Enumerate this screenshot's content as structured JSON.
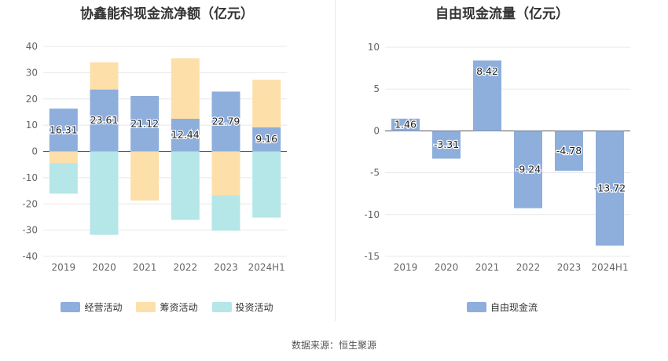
{
  "source_text": "数据来源：恒生聚源",
  "colors": {
    "operating": "#8eaedc",
    "financing": "#fddfa9",
    "investing": "#88d7d9",
    "fcf": "#8eaedc",
    "grid": "#e8e8e8",
    "axis": "#555555"
  },
  "chart_data": [
    {
      "type": "bar",
      "stacked": true,
      "title": "协鑫能科现金流净额（亿元）",
      "categories": [
        "2019",
        "2020",
        "2021",
        "2022",
        "2023",
        "2024H1"
      ],
      "ylim": [
        -40,
        40
      ],
      "yticks": [
        "40",
        "30",
        "20",
        "10",
        "0",
        "-10",
        "-20",
        "-30",
        "-40"
      ],
      "grid": true,
      "legend_position": "bottom",
      "series": [
        {
          "name": "经营活动",
          "color": "#8eaedc",
          "values": [
            16.31,
            23.61,
            21.12,
            12.44,
            22.79,
            9.16
          ],
          "labels": [
            "16.31",
            "23.61",
            "21.12",
            "12.44",
            "22.79",
            "9.16"
          ]
        },
        {
          "name": "筹资活动",
          "color": "#fddfa9",
          "values": [
            -4.5,
            10.3,
            -18.7,
            23.0,
            -16.7,
            18.1
          ]
        },
        {
          "name": "投资活动",
          "color": "#b5e6e8",
          "values": [
            -11.6,
            -31.8,
            0,
            -26.1,
            -13.5,
            -25.2
          ]
        }
      ]
    },
    {
      "type": "bar",
      "title": "自由现金流量（亿元）",
      "categories": [
        "2019",
        "2020",
        "2021",
        "2022",
        "2023",
        "2024H1"
      ],
      "ylim": [
        -15,
        10
      ],
      "yticks": [
        "10",
        "5",
        "0",
        "-5",
        "-10",
        "-15"
      ],
      "grid": true,
      "legend_position": "bottom",
      "series": [
        {
          "name": "自由现金流",
          "color": "#8eaedc",
          "values": [
            1.46,
            -3.31,
            8.42,
            -9.24,
            -4.78,
            -13.72
          ],
          "labels": [
            "1.46",
            "-3.31",
            "8.42",
            "-9.24",
            "-4.78",
            "-13.72"
          ]
        }
      ]
    }
  ]
}
